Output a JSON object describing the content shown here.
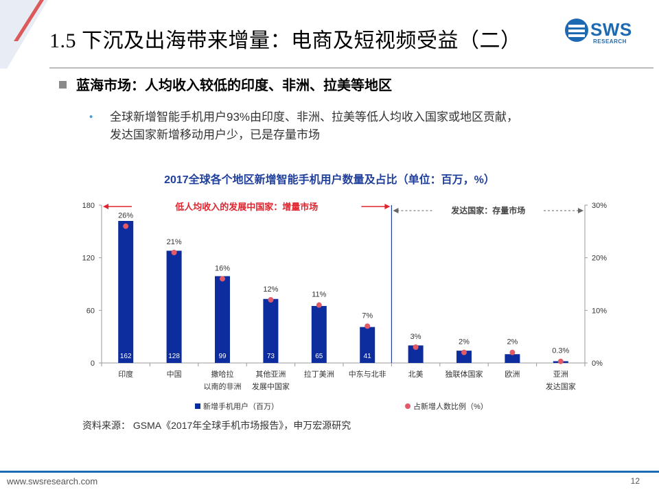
{
  "header": {
    "title": "1.5 下沉及出海带来增量：电商及短视频受益（二）",
    "logo_text": "SWS",
    "logo_sub": "RESEARCH"
  },
  "heading": "蓝海市场：人均收入较低的印度、非洲、拉美等地区",
  "bullet_lines": [
    "全球新增智能手机用户93%由印度、非洲、拉美等低人均收入国家或地区贡献，",
    "发达国家新增移动用户少，已是存量市场"
  ],
  "chart_data": {
    "type": "bar",
    "title": "2017全球各个地区新增智能手机用户数量及占比（单位：百万，%）",
    "categories": [
      [
        "印度"
      ],
      [
        "中国"
      ],
      [
        "撒哈拉",
        "以南的非洲"
      ],
      [
        "其他亚洲",
        "发展中国家"
      ],
      [
        "拉丁美洲"
      ],
      [
        "中东与北非"
      ],
      [
        "北美"
      ],
      [
        "独联体国家"
      ],
      [
        "欧洲"
      ],
      [
        "亚洲",
        "发达国家"
      ]
    ],
    "series": [
      {
        "name": "新增手机用户（百万）",
        "values": [
          162,
          128,
          99,
          73,
          65,
          41,
          null,
          null,
          null,
          null
        ],
        "values_estimated": [
          162,
          128,
          99,
          73,
          65,
          41,
          20,
          14,
          10,
          2
        ],
        "color": "#0d2d9e",
        "axis": "left"
      },
      {
        "name": "占新增人数比例（%）",
        "values": [
          26,
          21,
          16,
          12,
          11,
          7,
          3,
          2,
          2,
          0.3
        ],
        "labels": [
          "26%",
          "21%",
          "16%",
          "12%",
          "11%",
          "7%",
          "3%",
          "2%",
          "2%",
          "0.3%"
        ],
        "color": "#e05a68",
        "axis": "right"
      }
    ],
    "bar_labels": [
      "162",
      "128",
      "99",
      "73",
      "65",
      "41",
      "",
      "",
      "",
      ""
    ],
    "left_axis": {
      "ylim": [
        0,
        180
      ],
      "ticks": [
        0,
        60,
        120,
        180
      ],
      "tick_labels": [
        "0",
        "60",
        "120",
        "180"
      ]
    },
    "right_axis": {
      "ylim": [
        0,
        30
      ],
      "ticks": [
        0,
        10,
        20,
        30
      ],
      "tick_labels": [
        "0%",
        "10%",
        "20%",
        "30%"
      ]
    },
    "annotations": {
      "developing": "低人均收入的发展中国家：增量市场",
      "developed": "发达国家：存量市场"
    },
    "developing_count": 6,
    "legend_position": "bottom"
  },
  "source": "资料来源： GSMA《2017年全球手机市场报告》，申万宏源研究",
  "footer": {
    "url": "www.swsresearch.com",
    "page": "12"
  }
}
